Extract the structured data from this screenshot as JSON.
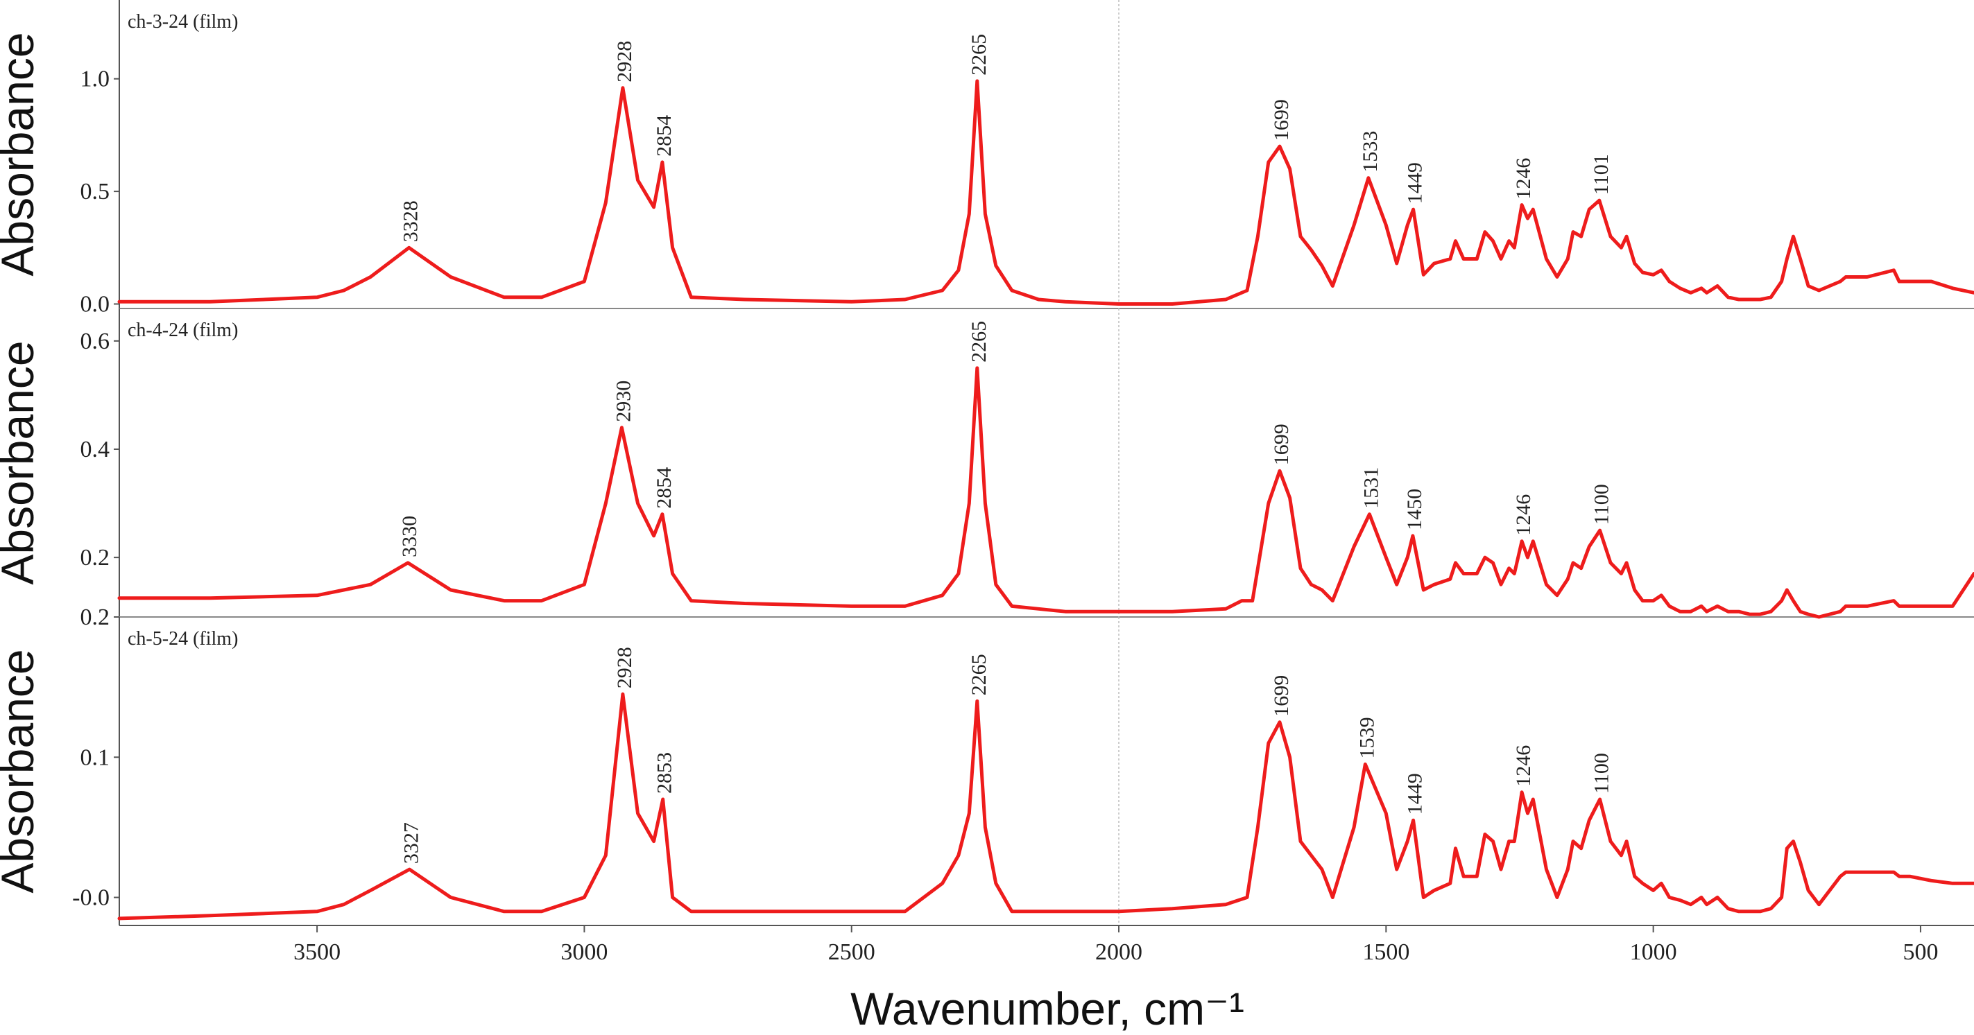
{
  "chart_data": {
    "type": "line",
    "xlabel": "Wavenumber, cm⁻¹",
    "xlim": [
      3870,
      400
    ],
    "x_reversed": true,
    "x_ticks": [
      "3500",
      "3000",
      "2500",
      "2000",
      "1500",
      "1000",
      "500"
    ],
    "x_tick_values": [
      3500,
      3000,
      2500,
      2000,
      1500,
      1000,
      500
    ],
    "guide_line_x": 2000,
    "color": "#ee1c1c",
    "panels": [
      {
        "title": "ch-3-24 (film)",
        "ylabel": "Absorbance",
        "ylim": [
          -0.02,
          1.35
        ],
        "y_ticks": [
          "0.0",
          "0.5",
          "1.0"
        ],
        "y_tick_values": [
          0.0,
          0.5,
          1.0
        ],
        "series": {
          "x": [
            3870,
            3700,
            3500,
            3450,
            3400,
            3328,
            3250,
            3150,
            3080,
            3000,
            2960,
            2928,
            2900,
            2870,
            2854,
            2835,
            2800,
            2700,
            2500,
            2400,
            2330,
            2300,
            2280,
            2265,
            2250,
            2230,
            2200,
            2150,
            2100,
            2000,
            1900,
            1800,
            1760,
            1740,
            1720,
            1699,
            1680,
            1660,
            1640,
            1620,
            1600,
            1560,
            1533,
            1500,
            1480,
            1460,
            1449,
            1430,
            1410,
            1380,
            1370,
            1355,
            1330,
            1315,
            1300,
            1285,
            1270,
            1260,
            1246,
            1235,
            1225,
            1200,
            1180,
            1160,
            1150,
            1135,
            1120,
            1101,
            1080,
            1060,
            1050,
            1035,
            1020,
            1000,
            985,
            970,
            950,
            930,
            910,
            900,
            880,
            860,
            840,
            820,
            800,
            780,
            760,
            750,
            738,
            725,
            710,
            690,
            650,
            640,
            600,
            550,
            540,
            520,
            480,
            440,
            400
          ],
          "y": [
            0.01,
            0.01,
            0.03,
            0.06,
            0.12,
            0.25,
            0.12,
            0.03,
            0.03,
            0.1,
            0.45,
            0.96,
            0.55,
            0.43,
            0.63,
            0.25,
            0.03,
            0.02,
            0.01,
            0.02,
            0.06,
            0.15,
            0.4,
            0.99,
            0.4,
            0.17,
            0.06,
            0.02,
            0.01,
            0.0,
            0.0,
            0.02,
            0.06,
            0.3,
            0.63,
            0.7,
            0.6,
            0.3,
            0.24,
            0.17,
            0.08,
            0.35,
            0.56,
            0.35,
            0.18,
            0.35,
            0.42,
            0.13,
            0.18,
            0.2,
            0.28,
            0.2,
            0.2,
            0.32,
            0.28,
            0.2,
            0.28,
            0.25,
            0.44,
            0.38,
            0.42,
            0.2,
            0.12,
            0.2,
            0.32,
            0.3,
            0.42,
            0.46,
            0.3,
            0.25,
            0.3,
            0.18,
            0.14,
            0.13,
            0.15,
            0.1,
            0.07,
            0.05,
            0.07,
            0.05,
            0.08,
            0.03,
            0.02,
            0.02,
            0.02,
            0.03,
            0.1,
            0.2,
            0.3,
            0.2,
            0.08,
            0.06,
            0.1,
            0.12,
            0.12,
            0.15,
            0.1,
            0.1,
            0.1,
            0.07,
            0.05
          ]
        },
        "peaks": [
          {
            "label": "3328",
            "x": 3328,
            "y": 0.25
          },
          {
            "label": "2928",
            "x": 2928,
            "y": 0.96
          },
          {
            "label": "2854",
            "x": 2854,
            "y": 0.63
          },
          {
            "label": "2265",
            "x": 2265,
            "y": 0.99
          },
          {
            "label": "1699",
            "x": 1699,
            "y": 0.7
          },
          {
            "label": "1533",
            "x": 1533,
            "y": 0.56
          },
          {
            "label": "1449",
            "x": 1449,
            "y": 0.42
          },
          {
            "label": "1246",
            "x": 1246,
            "y": 0.44
          },
          {
            "label": "1101",
            "x": 1101,
            "y": 0.46
          }
        ]
      },
      {
        "title": "ch-4-24 (film)",
        "ylabel": "Absorbance",
        "ylim": [
          0.09,
          0.66
        ],
        "y_ticks": [
          "0.2",
          "0.4",
          "0.6"
        ],
        "y_tick_values": [
          0.2,
          0.4,
          0.6
        ],
        "series": {
          "x": [
            3870,
            3700,
            3500,
            3450,
            3400,
            3330,
            3250,
            3150,
            3080,
            3000,
            2960,
            2930,
            2900,
            2870,
            2854,
            2835,
            2800,
            2700,
            2500,
            2400,
            2330,
            2300,
            2280,
            2265,
            2250,
            2230,
            2200,
            2150,
            2100,
            2000,
            1900,
            1800,
            1770,
            1750,
            1720,
            1699,
            1680,
            1660,
            1640,
            1620,
            1600,
            1560,
            1531,
            1500,
            1480,
            1460,
            1450,
            1430,
            1410,
            1380,
            1370,
            1355,
            1330,
            1315,
            1300,
            1285,
            1270,
            1260,
            1246,
            1235,
            1225,
            1200,
            1180,
            1160,
            1150,
            1135,
            1120,
            1100,
            1080,
            1060,
            1050,
            1035,
            1020,
            1000,
            985,
            970,
            950,
            930,
            910,
            900,
            880,
            860,
            840,
            820,
            800,
            780,
            760,
            750,
            738,
            725,
            710,
            690,
            650,
            640,
            600,
            550,
            540,
            520,
            480,
            440,
            400
          ],
          "y": [
            0.125,
            0.125,
            0.13,
            0.14,
            0.15,
            0.19,
            0.14,
            0.12,
            0.12,
            0.15,
            0.3,
            0.44,
            0.3,
            0.24,
            0.28,
            0.17,
            0.12,
            0.115,
            0.11,
            0.11,
            0.13,
            0.17,
            0.3,
            0.55,
            0.3,
            0.15,
            0.11,
            0.105,
            0.1,
            0.1,
            0.1,
            0.105,
            0.12,
            0.12,
            0.3,
            0.36,
            0.31,
            0.18,
            0.15,
            0.14,
            0.12,
            0.22,
            0.28,
            0.2,
            0.15,
            0.2,
            0.24,
            0.14,
            0.15,
            0.16,
            0.19,
            0.17,
            0.17,
            0.2,
            0.19,
            0.15,
            0.18,
            0.17,
            0.23,
            0.2,
            0.23,
            0.15,
            0.13,
            0.16,
            0.19,
            0.18,
            0.22,
            0.25,
            0.19,
            0.17,
            0.19,
            0.14,
            0.12,
            0.12,
            0.13,
            0.11,
            0.1,
            0.1,
            0.11,
            0.1,
            0.11,
            0.1,
            0.1,
            0.095,
            0.095,
            0.1,
            0.12,
            0.14,
            0.12,
            0.1,
            0.095,
            0.09,
            0.1,
            0.11,
            0.11,
            0.12,
            0.11,
            0.11,
            0.11,
            0.11,
            0.17
          ]
        },
        "peaks": [
          {
            "label": "3330",
            "x": 3330,
            "y": 0.19
          },
          {
            "label": "2930",
            "x": 2930,
            "y": 0.44
          },
          {
            "label": "2854",
            "x": 2854,
            "y": 0.28
          },
          {
            "label": "2265",
            "x": 2265,
            "y": 0.55
          },
          {
            "label": "1699",
            "x": 1699,
            "y": 0.36
          },
          {
            "label": "1531",
            "x": 1531,
            "y": 0.28
          },
          {
            "label": "1450",
            "x": 1450,
            "y": 0.24
          },
          {
            "label": "1246",
            "x": 1246,
            "y": 0.23
          },
          {
            "label": "1100",
            "x": 1100,
            "y": 0.25
          }
        ]
      },
      {
        "title": "ch-5-24 (film)",
        "ylabel": "Absorbance",
        "ylim": [
          -0.02,
          0.2
        ],
        "y_ticks": [
          "-0.0",
          "0.1",
          "0.2"
        ],
        "y_tick_values": [
          0.0,
          0.1,
          0.2
        ],
        "series": {
          "x": [
            3870,
            3700,
            3500,
            3450,
            3400,
            3327,
            3250,
            3150,
            3080,
            3000,
            2960,
            2928,
            2900,
            2870,
            2853,
            2835,
            2800,
            2700,
            2500,
            2400,
            2330,
            2300,
            2280,
            2265,
            2250,
            2230,
            2200,
            2150,
            2100,
            2000,
            1900,
            1800,
            1760,
            1740,
            1720,
            1699,
            1680,
            1660,
            1640,
            1620,
            1600,
            1560,
            1539,
            1500,
            1480,
            1460,
            1449,
            1430,
            1410,
            1380,
            1370,
            1355,
            1330,
            1315,
            1300,
            1285,
            1270,
            1260,
            1246,
            1235,
            1225,
            1200,
            1180,
            1160,
            1150,
            1135,
            1120,
            1100,
            1080,
            1060,
            1050,
            1035,
            1020,
            1000,
            985,
            970,
            950,
            930,
            910,
            900,
            880,
            860,
            840,
            820,
            800,
            780,
            760,
            750,
            738,
            725,
            710,
            690,
            650,
            640,
            600,
            550,
            540,
            520,
            480,
            440,
            400
          ],
          "y": [
            -0.015,
            -0.013,
            -0.01,
            -0.005,
            0.005,
            0.02,
            0.0,
            -0.01,
            -0.01,
            0.0,
            0.03,
            0.145,
            0.06,
            0.04,
            0.07,
            0.0,
            -0.01,
            -0.01,
            -0.01,
            -0.01,
            0.01,
            0.03,
            0.06,
            0.14,
            0.05,
            0.01,
            -0.01,
            -0.01,
            -0.01,
            -0.01,
            -0.008,
            -0.005,
            0.0,
            0.05,
            0.11,
            0.125,
            0.1,
            0.04,
            0.03,
            0.02,
            0.0,
            0.05,
            0.095,
            0.06,
            0.02,
            0.04,
            0.055,
            0.0,
            0.005,
            0.01,
            0.035,
            0.015,
            0.015,
            0.045,
            0.04,
            0.02,
            0.04,
            0.04,
            0.075,
            0.06,
            0.07,
            0.02,
            0.0,
            0.02,
            0.04,
            0.035,
            0.055,
            0.07,
            0.04,
            0.03,
            0.04,
            0.015,
            0.01,
            0.005,
            0.01,
            0.0,
            -0.002,
            -0.005,
            0.0,
            -0.005,
            0.0,
            -0.008,
            -0.01,
            -0.01,
            -0.01,
            -0.008,
            0.0,
            0.035,
            0.04,
            0.025,
            0.005,
            -0.005,
            0.015,
            0.018,
            0.018,
            0.018,
            0.015,
            0.015,
            0.012,
            0.01,
            0.01
          ]
        },
        "peaks": [
          {
            "label": "3327",
            "x": 3327,
            "y": 0.02
          },
          {
            "label": "2928",
            "x": 2928,
            "y": 0.145
          },
          {
            "label": "2853",
            "x": 2853,
            "y": 0.07
          },
          {
            "label": "2265",
            "x": 2265,
            "y": 0.14
          },
          {
            "label": "1699",
            "x": 1699,
            "y": 0.125
          },
          {
            "label": "1539",
            "x": 1539,
            "y": 0.095
          },
          {
            "label": "1449",
            "x": 1449,
            "y": 0.055
          },
          {
            "label": "1246",
            "x": 1246,
            "y": 0.075
          },
          {
            "label": "1100",
            "x": 1100,
            "y": 0.07
          }
        ]
      }
    ]
  }
}
